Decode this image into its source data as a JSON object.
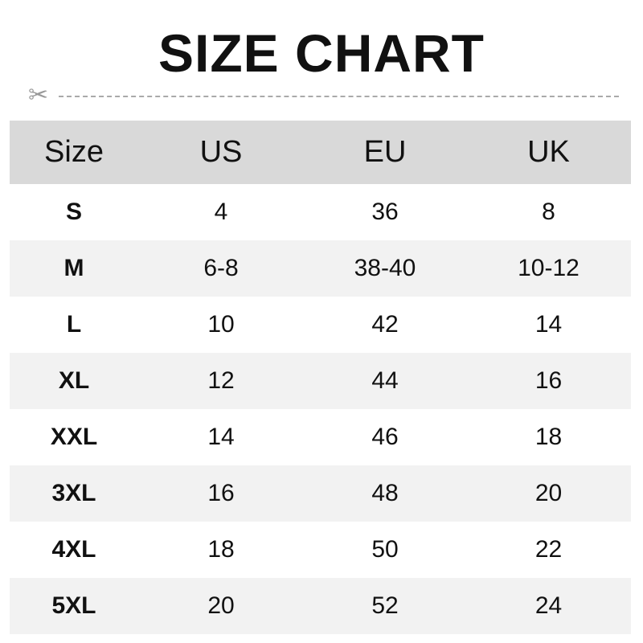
{
  "title": "SIZE CHART",
  "icons": {
    "cut": "scissors-icon"
  },
  "colors": {
    "header_bg": "#d9d9d9",
    "alt_row_bg": "#f2f2f2"
  },
  "table": {
    "headers": [
      "Size",
      "US",
      "EU",
      "UK"
    ],
    "rows": [
      [
        "S",
        "4",
        "36",
        "8"
      ],
      [
        "M",
        "6-8",
        "38-40",
        "10-12"
      ],
      [
        "L",
        "10",
        "42",
        "14"
      ],
      [
        "XL",
        "12",
        "44",
        "16"
      ],
      [
        "XXL",
        "14",
        "46",
        "18"
      ],
      [
        "3XL",
        "16",
        "48",
        "20"
      ],
      [
        "4XL",
        "18",
        "50",
        "22"
      ],
      [
        "5XL",
        "20",
        "52",
        "24"
      ]
    ]
  }
}
